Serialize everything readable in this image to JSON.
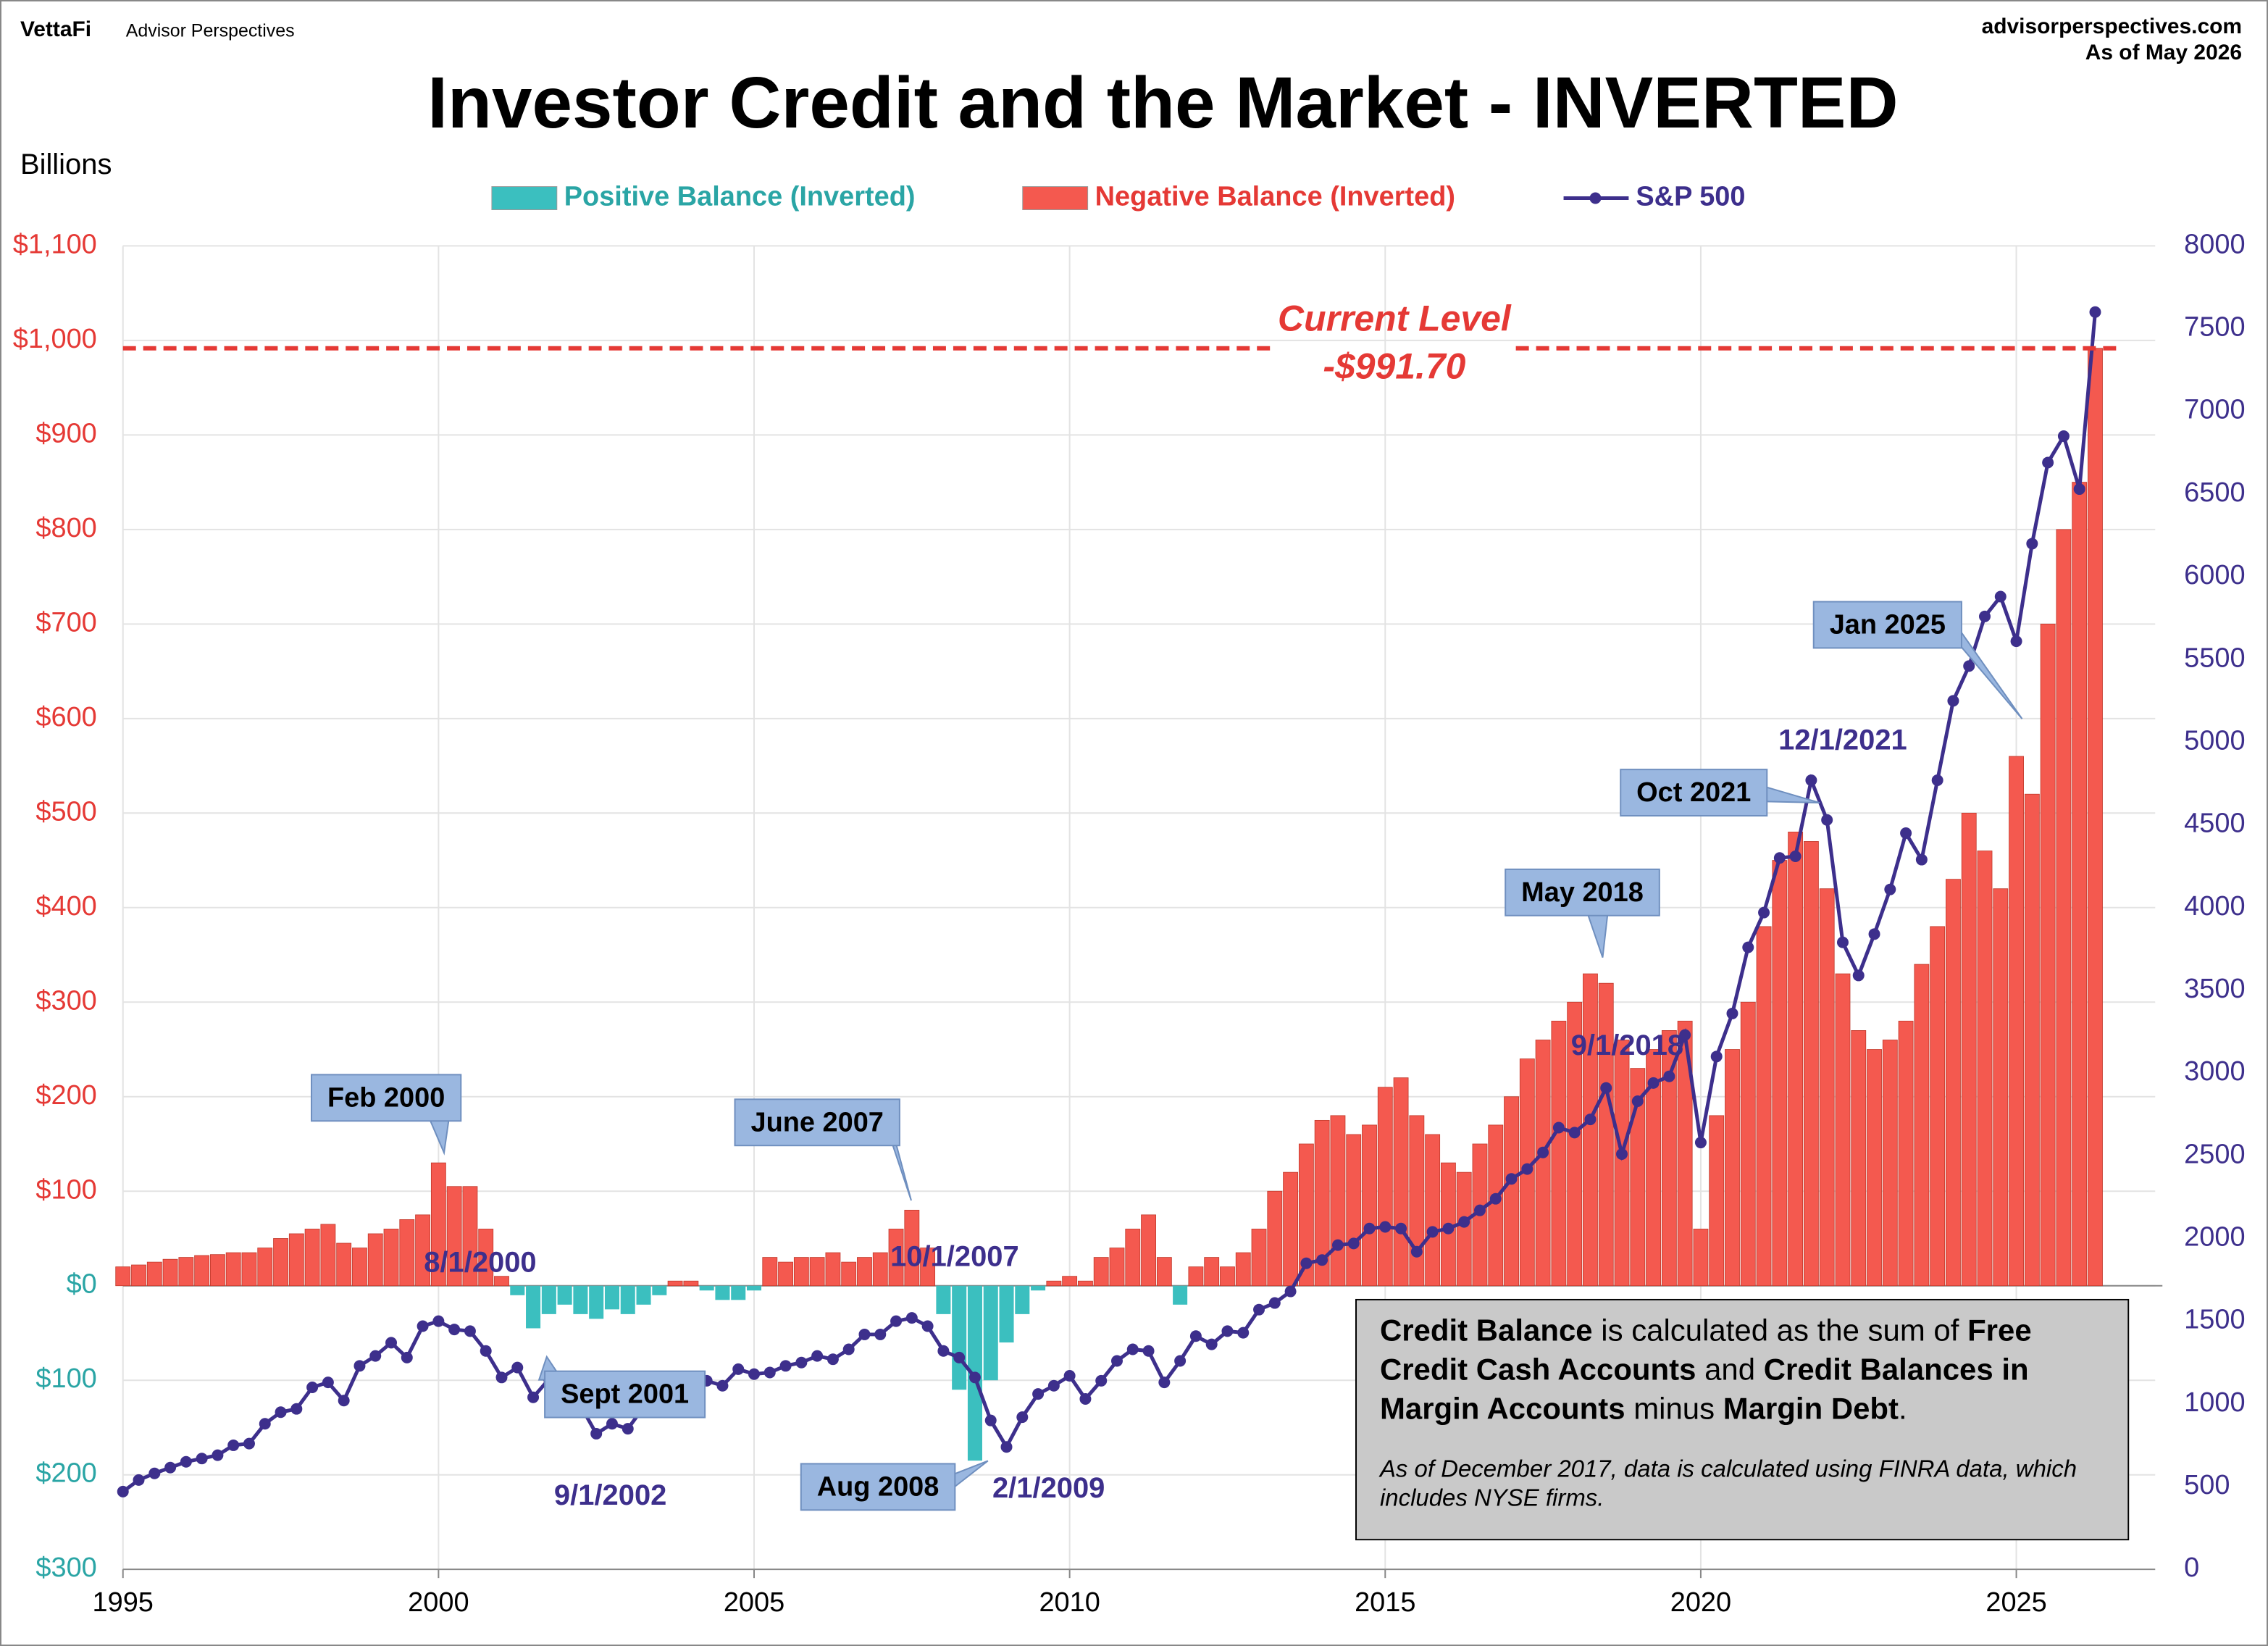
{
  "header": {
    "brand": "VettaFi",
    "brand_sub": "Advisor Perspectives",
    "site": "advisorperspectives.com",
    "as_of": "As of May 2026"
  },
  "chart_data": {
    "type": "bar",
    "title": "Investor Credit and the Market - INVERTED",
    "y_label": "Billions",
    "xlim": [
      1995,
      2027.2
    ],
    "xticks": [
      1995,
      2000,
      2005,
      2010,
      2015,
      2020,
      2025
    ],
    "ylim": [
      -300,
      1100
    ],
    "yticks": [
      {
        "value": -300,
        "label": "$300"
      },
      {
        "value": -200,
        "label": "$200"
      },
      {
        "value": -100,
        "label": "$100"
      },
      {
        "value": 0,
        "label": "$0"
      },
      {
        "value": 100,
        "label": "$100"
      },
      {
        "value": 200,
        "label": "$200"
      },
      {
        "value": 300,
        "label": "$300"
      },
      {
        "value": 400,
        "label": "$400"
      },
      {
        "value": 500,
        "label": "$500"
      },
      {
        "value": 600,
        "label": "$600"
      },
      {
        "value": 700,
        "label": "$700"
      },
      {
        "value": 800,
        "label": "$800"
      },
      {
        "value": 900,
        "label": "$900"
      },
      {
        "value": 1000,
        "label": "$1,000"
      },
      {
        "value": 1100,
        "label": "$1,100"
      }
    ],
    "y2lim": [
      0,
      8000
    ],
    "y2ticks": [
      0,
      500,
      1000,
      1500,
      2000,
      2500,
      3000,
      3500,
      4000,
      4500,
      5000,
      5500,
      6000,
      6500,
      7000,
      7500,
      8000
    ],
    "grid": true,
    "x": [
      1995,
      1995.25,
      1995.5,
      1995.75,
      1996,
      1996.25,
      1996.5,
      1996.75,
      1997,
      1997.25,
      1997.5,
      1997.75,
      1998,
      1998.25,
      1998.5,
      1998.75,
      1999,
      1999.25,
      1999.5,
      1999.75,
      2000,
      2000.25,
      2000.5,
      2000.75,
      2001,
      2001.25,
      2001.5,
      2001.75,
      2002,
      2002.25,
      2002.5,
      2002.75,
      2003,
      2003.25,
      2003.5,
      2003.75,
      2004,
      2004.25,
      2004.5,
      2004.75,
      2005,
      2005.25,
      2005.5,
      2005.75,
      2006,
      2006.25,
      2006.5,
      2006.75,
      2007,
      2007.25,
      2007.5,
      2007.75,
      2008,
      2008.25,
      2008.5,
      2008.75,
      2009,
      2009.25,
      2009.5,
      2009.75,
      2010,
      2010.25,
      2010.5,
      2010.75,
      2011,
      2011.25,
      2011.5,
      2011.75,
      2012,
      2012.25,
      2012.5,
      2012.75,
      2013,
      2013.25,
      2013.5,
      2013.75,
      2014,
      2014.25,
      2014.5,
      2014.75,
      2015,
      2015.25,
      2015.5,
      2015.75,
      2016,
      2016.25,
      2016.5,
      2016.75,
      2017,
      2017.25,
      2017.5,
      2017.75,
      2018,
      2018.25,
      2018.5,
      2018.75,
      2019,
      2019.25,
      2019.5,
      2019.75,
      2020,
      2020.25,
      2020.5,
      2020.75,
      2021,
      2021.25,
      2021.5,
      2021.75,
      2022,
      2022.25,
      2022.5,
      2022.75,
      2023,
      2023.25,
      2023.5,
      2023.75,
      2024,
      2024.25,
      2024.5,
      2024.75,
      2025,
      2025.25,
      2025.5,
      2025.75,
      2026,
      2026.25
    ],
    "series": [
      {
        "name": "Positive Balance (Inverted)",
        "type": "bar",
        "color": "#3bbfbf",
        "text_color": "#2aa5a5",
        "values": [
          null,
          null,
          null,
          null,
          null,
          null,
          null,
          null,
          null,
          null,
          null,
          null,
          null,
          null,
          null,
          null,
          null,
          null,
          null,
          null,
          null,
          null,
          null,
          null,
          null,
          -10,
          -45,
          -30,
          -20,
          -30,
          -35,
          -25,
          -30,
          -20,
          -10,
          null,
          null,
          -5,
          -15,
          -15,
          -5,
          null,
          null,
          null,
          null,
          null,
          null,
          null,
          null,
          null,
          null,
          null,
          -30,
          -110,
          -185,
          -100,
          -60,
          -30,
          -5,
          null,
          null,
          null,
          null,
          null,
          null,
          null,
          null,
          -20,
          null,
          null,
          null,
          null,
          null,
          null,
          null,
          null,
          null,
          null,
          null,
          null,
          null,
          null,
          null,
          null,
          null,
          null,
          null,
          null,
          null,
          null,
          null,
          null,
          null,
          null,
          null,
          null,
          null,
          null,
          null,
          null,
          null,
          null,
          null,
          null,
          null,
          null,
          null,
          null,
          null,
          null,
          null,
          null,
          null,
          null,
          null,
          null,
          null,
          null,
          null,
          null,
          null,
          null,
          null,
          null,
          null,
          null
        ]
      },
      {
        "name": "Negative Balance (Inverted)",
        "type": "bar",
        "color": "#f4594f",
        "text_color": "#e53935",
        "values": [
          20,
          22,
          25,
          28,
          30,
          32,
          33,
          35,
          35,
          40,
          50,
          55,
          60,
          65,
          45,
          40,
          55,
          60,
          70,
          75,
          130,
          105,
          105,
          60,
          10,
          null,
          null,
          null,
          null,
          null,
          null,
          null,
          null,
          null,
          null,
          5,
          5,
          null,
          null,
          null,
          null,
          30,
          25,
          30,
          30,
          35,
          25,
          30,
          35,
          60,
          80,
          40,
          null,
          null,
          null,
          null,
          null,
          null,
          null,
          5,
          10,
          5,
          30,
          40,
          60,
          75,
          30,
          null,
          20,
          30,
          20,
          35,
          60,
          100,
          120,
          150,
          175,
          180,
          160,
          170,
          210,
          220,
          180,
          160,
          130,
          120,
          150,
          170,
          200,
          240,
          260,
          280,
          300,
          330,
          320,
          260,
          230,
          250,
          270,
          280,
          60,
          180,
          250,
          300,
          380,
          450,
          480,
          470,
          420,
          330,
          270,
          250,
          260,
          280,
          340,
          380,
          430,
          500,
          460,
          420,
          560,
          520,
          700,
          800,
          850,
          991.7
        ]
      },
      {
        "name": "S&P 500",
        "type": "line",
        "axis": "y2",
        "color": "#3d2f8c",
        "values": [
          470,
          540,
          580,
          615,
          650,
          670,
          690,
          750,
          760,
          880,
          950,
          970,
          1100,
          1130,
          1020,
          1230,
          1290,
          1370,
          1280,
          1470,
          1500,
          1450,
          1440,
          1320,
          1160,
          1220,
          1040,
          1150,
          1150,
          990,
          820,
          880,
          850,
          980,
          1000,
          1110,
          1130,
          1140,
          1110,
          1210,
          1180,
          1190,
          1230,
          1250,
          1290,
          1270,
          1330,
          1420,
          1420,
          1500,
          1520,
          1470,
          1320,
          1280,
          1160,
          900,
          740,
          920,
          1060,
          1110,
          1170,
          1030,
          1140,
          1260,
          1330,
          1320,
          1130,
          1260,
          1410,
          1360,
          1440,
          1430,
          1570,
          1610,
          1680,
          1850,
          1870,
          1960,
          1970,
          2060,
          2070,
          2060,
          1920,
          2040,
          2060,
          2100,
          2170,
          2240,
          2360,
          2420,
          2520,
          2670,
          2640,
          2720,
          2910,
          2510,
          2830,
          2940,
          2980,
          3230,
          2580,
          3100,
          3360,
          3760,
          3970,
          4300,
          4310,
          4770,
          4530,
          3790,
          3590,
          3840,
          4110,
          4450,
          4290,
          4770,
          5250,
          5460,
          5760,
          5880,
          5610,
          6200,
          6690,
          6850,
          6530,
          7600
        ]
      }
    ],
    "reference_line": {
      "value": 991.7,
      "label_lines": [
        "Current Level",
        "-$991.70"
      ],
      "color": "#e53935"
    },
    "callouts": [
      "Feb 2000",
      "June 2007",
      "Aug 2008",
      "Sept 2001",
      "May 2018",
      "Oct 2021",
      "Jan 2025"
    ],
    "date_labels": [
      "8/1/2000",
      "10/1/2007",
      "2/1/2009",
      "9/1/2002",
      "9/1/2018",
      "12/1/2021"
    ],
    "note": {
      "parts": [
        "Credit Balance",
        " is calculated as the sum of ",
        "Free Credit Cash Accounts",
        " and ",
        "Credit Balances in Margin Accounts",
        " minus ",
        "Margin Debt",
        "."
      ],
      "footer": "As of December 2017, data is calculated using FINRA data, which includes NYSE firms."
    }
  }
}
